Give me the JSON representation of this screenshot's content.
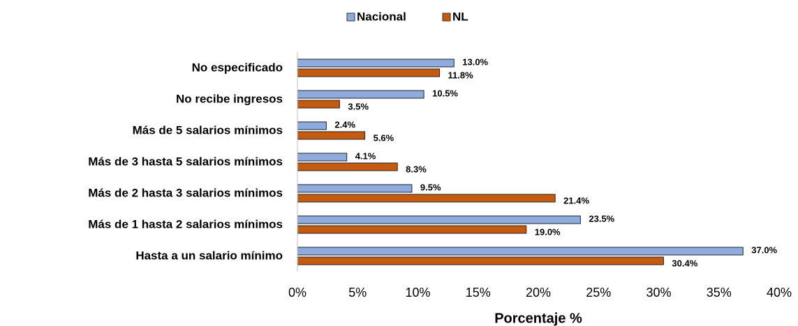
{
  "chart_data": {
    "type": "hbar",
    "categories": [
      "No especificado",
      "No recibe ingresos",
      "Más de 5 salarios mínimos",
      "Más de 3 hasta 5 salarios mínimos",
      "Más de 2 hasta 3 salarios mínimos",
      "Más de 1 hasta 2 salarios mínimos",
      "Hasta a un salario mínimo"
    ],
    "series": [
      {
        "name": "Nacional",
        "color": "#8faadc",
        "values": [
          13.0,
          10.5,
          2.4,
          4.1,
          9.5,
          23.5,
          37.0
        ],
        "value_labels": [
          "13.0%",
          "10.5%",
          "2.4%",
          "4.1%",
          "9.5%",
          "23.5%",
          "37.0%"
        ]
      },
      {
        "name": "NL",
        "color": "#c55a11",
        "values": [
          11.8,
          3.5,
          5.6,
          8.3,
          21.4,
          19.0,
          30.4
        ],
        "value_labels": [
          "11.8%",
          "3.5%",
          "5.6%",
          "8.3%",
          "21.4%",
          "19.0%",
          "30.4%"
        ]
      }
    ],
    "xlabel": "Porcentaje %",
    "xlim": [
      0,
      40
    ],
    "xticks": [
      {
        "value": 0,
        "label": "0%"
      },
      {
        "value": 5,
        "label": "5%"
      },
      {
        "value": 10,
        "label": "10%"
      },
      {
        "value": 15,
        "label": "15%"
      },
      {
        "value": 20,
        "label": "20%"
      },
      {
        "value": 25,
        "label": "25%"
      },
      {
        "value": 30,
        "label": "30%"
      },
      {
        "value": 35,
        "label": "35%"
      },
      {
        "value": 40,
        "label": "40%"
      }
    ],
    "legend": "top"
  }
}
